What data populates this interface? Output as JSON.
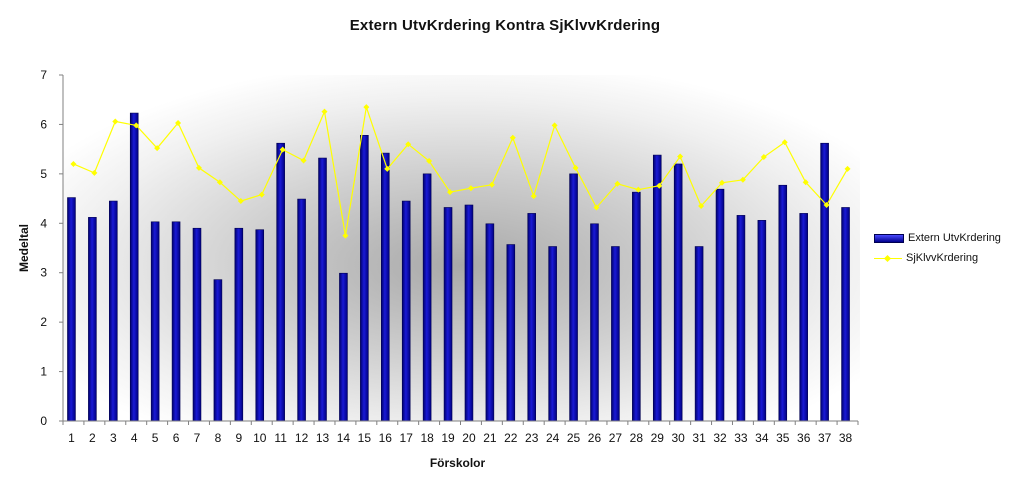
{
  "chart_data": {
    "type": "bar",
    "title": "Extern UtvKrdering Kontra SjKlvvKrdering",
    "xlabel": "Förskolor",
    "ylabel": "Medeltal",
    "ylim": [
      0,
      7
    ],
    "yticks": [
      "0",
      "1",
      "2",
      "3",
      "4",
      "5",
      "6",
      "7"
    ],
    "categories": [
      "1",
      "2",
      "3",
      "4",
      "5",
      "6",
      "7",
      "8",
      "9",
      "10",
      "11",
      "12",
      "13",
      "14",
      "15",
      "16",
      "17",
      "18",
      "19",
      "20",
      "21",
      "22",
      "23",
      "24",
      "25",
      "26",
      "27",
      "28",
      "29",
      "30",
      "31",
      "32",
      "33",
      "34",
      "35",
      "36",
      "37",
      "38"
    ],
    "series": [
      {
        "name": "Extern UtvKrdering",
        "type": "bar",
        "color": "#0a0ab4",
        "values": [
          4.52,
          4.12,
          4.45,
          6.23,
          4.03,
          4.03,
          3.9,
          2.86,
          3.9,
          3.87,
          5.62,
          4.49,
          5.32,
          2.99,
          5.78,
          5.42,
          4.45,
          5.0,
          4.32,
          4.37,
          3.99,
          3.57,
          4.2,
          3.53,
          5.0,
          3.99,
          3.53,
          4.63,
          5.38,
          5.2,
          3.53,
          4.69,
          4.16,
          4.06,
          4.77,
          4.2,
          5.62,
          4.32
        ]
      },
      {
        "name": "SjKlvvKrdering",
        "type": "line",
        "color": "#ffff00",
        "values": [
          5.2,
          5.02,
          6.06,
          5.98,
          5.52,
          6.03,
          5.12,
          4.83,
          4.45,
          4.58,
          5.49,
          5.27,
          6.26,
          3.75,
          6.35,
          5.1,
          5.6,
          5.26,
          4.63,
          4.71,
          4.78,
          5.73,
          4.55,
          5.98,
          5.12,
          4.32,
          4.8,
          4.68,
          4.76,
          5.35,
          4.35,
          4.82,
          4.88,
          5.34,
          5.64,
          4.83,
          4.37,
          5.1
        ]
      }
    ],
    "legend_labels": [
      "Extern UtvKrdering",
      "SjKlvvKrdering"
    ],
    "grid": false,
    "legend_position": "right"
  }
}
